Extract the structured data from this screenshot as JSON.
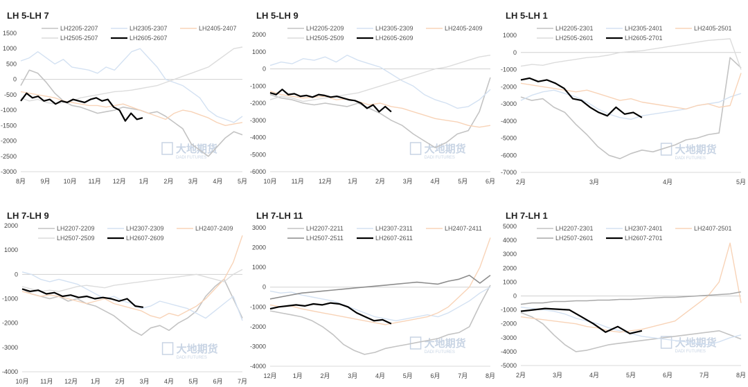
{
  "watermark": {
    "main": "大地期货",
    "sub": "DADI FUTURES"
  },
  "chart_data": [
    {
      "type": "line",
      "title": "LH 5-LH 7",
      "ylim": [
        -3000,
        1500
      ],
      "yticks": [
        1500,
        1000,
        500,
        0,
        -500,
        -1000,
        -1500,
        -2000,
        -2500,
        -3000
      ],
      "xticks": [
        "8月",
        "9月",
        "10月",
        "11月",
        "12月",
        "1月",
        "2月",
        "3月",
        "4月",
        "5月"
      ],
      "series": [
        {
          "name": "LH2205-2207",
          "color": "#c3c3c3",
          "width": 1.6,
          "values": [
            -200,
            300,
            200,
            -100,
            -450,
            -700,
            -850,
            -900,
            -1000,
            -1100,
            -1050,
            -1000,
            -900,
            -950,
            -1000,
            -1100,
            -1050,
            -1200,
            -1400,
            -1600,
            -2100,
            -2300,
            -2500,
            -2200,
            -1900,
            -1700,
            -1800
          ]
        },
        {
          "name": "LH2305-2307",
          "color": "#d3e1f2",
          "width": 1.4,
          "values": [
            600,
            700,
            900,
            700,
            500,
            650,
            400,
            350,
            300,
            200,
            400,
            300,
            600,
            900,
            1000,
            700,
            400,
            0,
            -100,
            -200,
            -400,
            -600,
            -1000,
            -1200,
            -1300,
            -1400,
            -1200
          ]
        },
        {
          "name": "LH2405-2407",
          "color": "#f8d3b7",
          "width": 1.4,
          "values": [
            -400,
            -450,
            -500,
            -550,
            -600,
            -700,
            -750,
            -800,
            -850,
            -850,
            -900,
            -850,
            -800,
            -900,
            -1000,
            -1100,
            -1200,
            -1300,
            -1100,
            -1000,
            -1050,
            -1150,
            -1250,
            -1400,
            -1500,
            -1450,
            -1400
          ]
        },
        {
          "name": "LH2505-2507",
          "color": "#dcdcdc",
          "width": 1.4,
          "values": [
            -600,
            -700,
            -650,
            -750,
            -800,
            -750,
            -700,
            -600,
            -550,
            -500,
            -450,
            -400,
            -380,
            -350,
            -300,
            -250,
            -200,
            -100,
            0,
            100,
            200,
            300,
            400,
            600,
            800,
            1000,
            1050
          ]
        },
        {
          "name": "LH2605-2607",
          "color": "#000000",
          "width": 2.2,
          "values": [
            -700,
            -450,
            -600,
            -550,
            -700,
            -650,
            -800,
            -700,
            -750,
            -650,
            -700,
            -750,
            -650,
            -600,
            -700,
            -650,
            -900,
            -1000,
            -1350,
            -1100,
            -1300,
            -1250
          ]
        }
      ]
    },
    {
      "type": "line",
      "title": "LH 5-LH 9",
      "ylim": [
        -6000,
        2000
      ],
      "yticks": [
        2000,
        1000,
        0,
        -1000,
        -2000,
        -3000,
        -4000,
        -5000,
        -6000
      ],
      "xticks": [
        "10月",
        "11月",
        "12月",
        "1月",
        "2月",
        "3月",
        "4月",
        "5月",
        "6月"
      ],
      "series": [
        {
          "name": "LH2205-2209",
          "color": "#c3c3c3",
          "width": 1.6,
          "values": [
            -1500,
            -1700,
            -1800,
            -2000,
            -2100,
            -2000,
            -2100,
            -2200,
            -2000,
            -2300,
            -2600,
            -3000,
            -3300,
            -3800,
            -4200,
            -4600,
            -4300,
            -3800,
            -3600,
            -2500,
            -500
          ]
        },
        {
          "name": "LH2305-2309",
          "color": "#d3e1f2",
          "width": 1.4,
          "values": [
            200,
            400,
            300,
            600,
            500,
            700,
            400,
            800,
            500,
            300,
            100,
            -300,
            -700,
            -1000,
            -1500,
            -1800,
            -2000,
            -2300,
            -2200,
            -1800,
            -1200
          ]
        },
        {
          "name": "LH2405-2409",
          "color": "#f8d3b7",
          "width": 1.4,
          "values": [
            -1300,
            -1500,
            -1600,
            -1700,
            -1650,
            -1600,
            -1800,
            -1750,
            -1900,
            -2100,
            -2000,
            -2200,
            -2300,
            -2500,
            -2700,
            -2900,
            -3000,
            -3100,
            -3300,
            -3400,
            -3300
          ]
        },
        {
          "name": "LH2505-2509",
          "color": "#dcdcdc",
          "width": 1.4,
          "values": [
            -1800,
            -1600,
            -1700,
            -1900,
            -1800,
            -1700,
            -1600,
            -1500,
            -1400,
            -1200,
            -1000,
            -800,
            -600,
            -400,
            -200,
            0,
            100,
            300,
            500,
            700,
            800
          ]
        },
        {
          "name": "LH2605-2609",
          "color": "#000000",
          "width": 2.2,
          "values": [
            -1400,
            -1500,
            -1200,
            -1500,
            -1450,
            -1600,
            -1550,
            -1650,
            -1500,
            -1550,
            -1650,
            -1600,
            -1700,
            -1800,
            -1850,
            -2000,
            -2300,
            -2100,
            -2500,
            -2200,
            -2500
          ]
        }
      ]
    },
    {
      "type": "line",
      "title": "LH 5-LH 1",
      "ylim": [
        -7000,
        1000
      ],
      "yticks": [
        1000,
        0,
        -1000,
        -2000,
        -3000,
        -4000,
        -5000,
        -6000,
        -7000
      ],
      "xticks": [
        "2月",
        "3月",
        "4月",
        "5月"
      ],
      "series": [
        {
          "name": "LH2205-2301",
          "color": "#c3c3c3",
          "width": 1.6,
          "values": [
            -2600,
            -2800,
            -2700,
            -3200,
            -3500,
            -4200,
            -4800,
            -5500,
            -6000,
            -6200,
            -5900,
            -5700,
            -5800,
            -5600,
            -5400,
            -5100,
            -5000,
            -4800,
            -4700,
            -300,
            -900
          ]
        },
        {
          "name": "LH2305-2401",
          "color": "#d3e1f2",
          "width": 1.4,
          "values": [
            -2800,
            -2500,
            -2300,
            -2200,
            -2400,
            -2600,
            -2900,
            -3300,
            -3600,
            -3800,
            -3900,
            -3700,
            -3600,
            -3500,
            -3400,
            -3300,
            -3100,
            -3000,
            -2900,
            -2600,
            -2400
          ]
        },
        {
          "name": "LH2405-2501",
          "color": "#f8d3b7",
          "width": 1.4,
          "values": [
            -1800,
            -1900,
            -2000,
            -2100,
            -2200,
            -2300,
            -2200,
            -2400,
            -2600,
            -2800,
            -2700,
            -2900,
            -3000,
            -3100,
            -3200,
            -3300,
            -3100,
            -3000,
            -3200,
            -3100,
            -1200
          ]
        },
        {
          "name": "LH2505-2601",
          "color": "#dcdcdc",
          "width": 1.4,
          "values": [
            -800,
            -700,
            -750,
            -600,
            -500,
            -400,
            -300,
            -250,
            -150,
            0,
            50,
            100,
            200,
            300,
            400,
            500,
            600,
            700,
            750,
            800,
            -1000
          ]
        },
        {
          "name": "LH2605-2701",
          "color": "#000000",
          "width": 2.2,
          "values": [
            -1600,
            -1500,
            -1700,
            -1600,
            -1800,
            -2100,
            -2700,
            -2800,
            -3200,
            -3500,
            -3700,
            -3200,
            -3600,
            -3500,
            -3800
          ]
        }
      ]
    },
    {
      "type": "line",
      "title": "LH 7-LH 9",
      "ylim": [
        -4000,
        2000
      ],
      "yticks": [
        2000,
        1000,
        0,
        -1000,
        -2000,
        -3000,
        -4000
      ],
      "xticks": [
        "10月",
        "11月",
        "12月",
        "1月",
        "2月",
        "3月",
        "4月",
        "5月",
        "6月",
        "7月"
      ],
      "series": [
        {
          "name": "LH2207-2209",
          "color": "#c3c3c3",
          "width": 1.6,
          "values": [
            -600,
            -800,
            -900,
            -1000,
            -900,
            -1100,
            -1000,
            -1200,
            -1300,
            -1500,
            -1700,
            -2000,
            -2300,
            -2500,
            -2200,
            -2100,
            -2300,
            -2000,
            -1800,
            -1500,
            -900,
            -500,
            -200,
            -1000,
            -1800
          ]
        },
        {
          "name": "LH2307-2309",
          "color": "#d3e1f2",
          "width": 1.4,
          "values": [
            100,
            0,
            -200,
            -300,
            -200,
            -300,
            -400,
            -600,
            -800,
            -1000,
            -900,
            -1100,
            -1200,
            -1400,
            -1300,
            -1100,
            -1200,
            -1300,
            -1400,
            -1600,
            -1800,
            -1500,
            -1200,
            -900,
            -1900
          ]
        },
        {
          "name": "LH2407-2409",
          "color": "#f8d3b7",
          "width": 1.4,
          "values": [
            -700,
            -800,
            -900,
            -850,
            -900,
            -1000,
            -1100,
            -1200,
            -1100,
            -1000,
            -1200,
            -1300,
            -1400,
            -1500,
            -1700,
            -1800,
            -1600,
            -1700,
            -1500,
            -1300,
            -1000,
            -600,
            -200,
            500,
            1600
          ]
        },
        {
          "name": "LH2507-2509",
          "color": "#dcdcdc",
          "width": 1.4,
          "values": [
            -500,
            -600,
            -700,
            -650,
            -700,
            -600,
            -500,
            -450,
            -500,
            -550,
            -450,
            -400,
            -350,
            -300,
            -250,
            -200,
            -150,
            -100,
            -50,
            0,
            -100,
            -200,
            -300,
            0,
            200
          ]
        },
        {
          "name": "LH2607-2609",
          "color": "#000000",
          "width": 2.2,
          "values": [
            -600,
            -700,
            -650,
            -800,
            -750,
            -900,
            -850,
            -950,
            -900,
            -1000,
            -950,
            -1000,
            -1100,
            -1000,
            -1300,
            -1350
          ]
        }
      ]
    },
    {
      "type": "line",
      "title": "LH 7-LH 11",
      "ylim": [
        -4000,
        3000
      ],
      "yticks": [
        3000,
        2000,
        1000,
        0,
        -1000,
        -2000,
        -3000,
        -4000
      ],
      "xticks": [
        "12月",
        "1月",
        "2月",
        "3月",
        "4月",
        "5月",
        "6月",
        "7月",
        "8月"
      ],
      "series": [
        {
          "name": "LH2207-2211",
          "color": "#c3c3c3",
          "width": 1.6,
          "values": [
            -1200,
            -1300,
            -1400,
            -1500,
            -1700,
            -2000,
            -2400,
            -2900,
            -3200,
            -3400,
            -3300,
            -3100,
            -3000,
            -2900,
            -2800,
            -2700,
            -2600,
            -2400,
            -2300,
            -2000,
            -900,
            100
          ]
        },
        {
          "name": "LH2307-2311",
          "color": "#d3e1f2",
          "width": 1.4,
          "values": [
            -200,
            -300,
            -250,
            -400,
            -500,
            -600,
            -700,
            -900,
            -1100,
            -1300,
            -1500,
            -1600,
            -1700,
            -1600,
            -1500,
            -1400,
            -1500,
            -1300,
            -1000,
            -700,
            -300,
            0
          ]
        },
        {
          "name": "LH2407-2411",
          "color": "#f8d3b7",
          "width": 1.4,
          "values": [
            -900,
            -1000,
            -950,
            -1100,
            -1200,
            -1300,
            -1400,
            -1500,
            -1600,
            -1700,
            -1800,
            -1900,
            -1800,
            -1700,
            -1600,
            -1500,
            -1300,
            -1000,
            -500,
            0,
            1000,
            2500
          ]
        },
        {
          "name": "LH2507-2511",
          "color": "#8c8c8c",
          "width": 1.6,
          "values": [
            -600,
            -500,
            -400,
            -300,
            -250,
            -200,
            -150,
            -100,
            -50,
            0,
            50,
            100,
            150,
            200,
            250,
            200,
            150,
            300,
            400,
            600,
            200,
            600
          ]
        },
        {
          "name": "LH2607-2611",
          "color": "#000000",
          "width": 2.2,
          "values": [
            -1100,
            -1000,
            -950,
            -900,
            -950,
            -850,
            -900,
            -800,
            -850,
            -1000,
            -1300,
            -1500,
            -1700,
            -1650,
            -1850
          ]
        }
      ]
    },
    {
      "type": "line",
      "title": "LH 7-LH 1",
      "ylim": [
        -5000,
        5000
      ],
      "yticks": [
        5000,
        4000,
        3000,
        2000,
        1000,
        0,
        -1000,
        -2000,
        -3000,
        -4000,
        -5000
      ],
      "xticks": [
        "2月",
        "3月",
        "4月",
        "5月",
        "6月",
        "7月",
        "8月"
      ],
      "series": [
        {
          "name": "LH2207-2301",
          "color": "#c3c3c3",
          "width": 1.6,
          "values": [
            -1200,
            -1500,
            -2000,
            -2800,
            -3500,
            -4000,
            -3900,
            -3700,
            -3500,
            -3400,
            -3300,
            -3200,
            -3100,
            -3000,
            -2900,
            -2800,
            -2700,
            -2600,
            -2500,
            -2800,
            -3100
          ]
        },
        {
          "name": "LH2307-2401",
          "color": "#d3e1f2",
          "width": 1.4,
          "values": [
            -800,
            -900,
            -1000,
            -1100,
            -1300,
            -1600,
            -1800,
            -2000,
            -2300,
            -2500,
            -2700,
            -2900,
            -3000,
            -3100,
            -3200,
            -3300,
            -3400,
            -3500,
            -3300,
            -3000,
            -2800
          ]
        },
        {
          "name": "LH2407-2501",
          "color": "#f8d3b7",
          "width": 1.4,
          "values": [
            -1500,
            -1600,
            -1700,
            -1800,
            -1900,
            -2000,
            -2200,
            -2300,
            -2500,
            -2600,
            -2500,
            -2400,
            -2200,
            -2000,
            -1800,
            -1200,
            -600,
            0,
            1000,
            3800,
            -500
          ]
        },
        {
          "name": "LH2507-2601",
          "color": "#a8a8a8",
          "width": 1.6,
          "values": [
            -600,
            -500,
            -500,
            -400,
            -400,
            -350,
            -350,
            -300,
            -300,
            -250,
            -250,
            -200,
            -150,
            -100,
            -100,
            -50,
            0,
            50,
            100,
            150,
            300
          ]
        },
        {
          "name": "LH2607-2701",
          "color": "#000000",
          "width": 2.2,
          "values": [
            -1100,
            -1000,
            -900,
            -950,
            -1000,
            -1500,
            -2000,
            -2600,
            -2200,
            -2700,
            -2500
          ]
        }
      ]
    }
  ]
}
